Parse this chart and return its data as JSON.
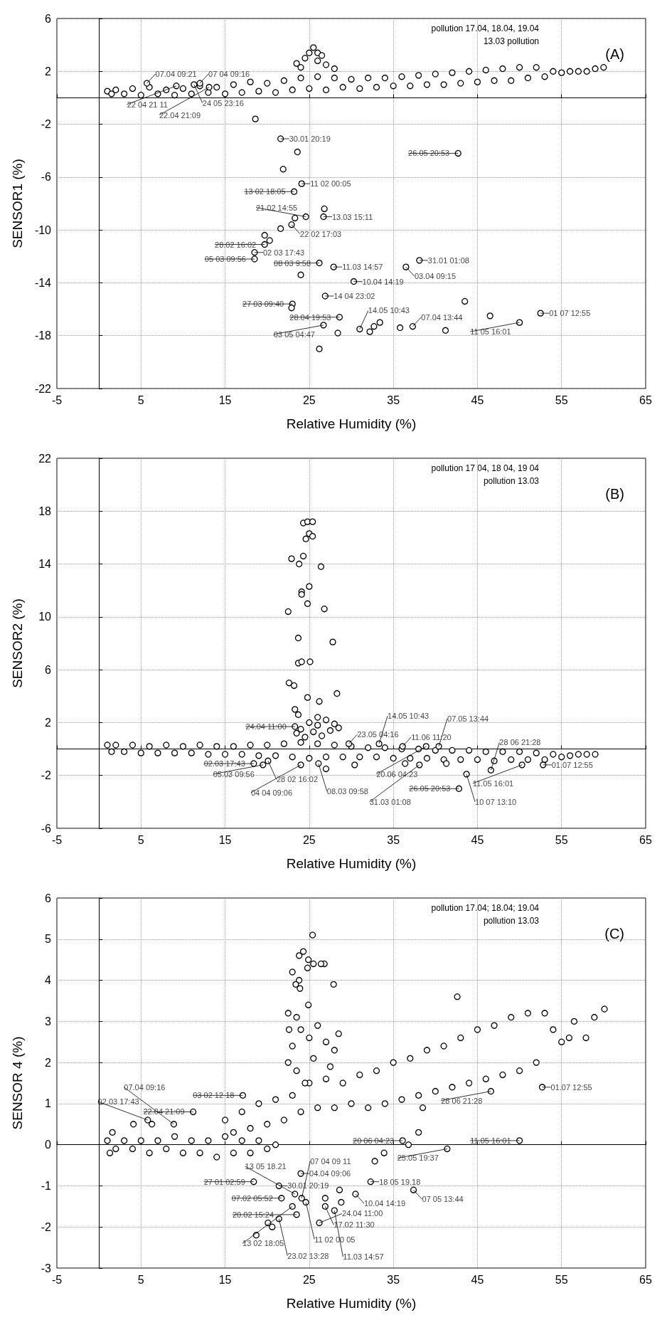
{
  "chart_data": [
    {
      "type": "scatter",
      "xlabel": "Relative Humidity (%)",
      "ylabel": "SENSOR1 (%)",
      "xlim": [
        -5,
        65
      ],
      "ylim": [
        -22,
        6
      ],
      "xticks": [
        -5,
        5,
        15,
        25,
        35,
        45,
        55,
        65
      ],
      "yticks": [
        -22,
        -18,
        -14,
        -10,
        -6,
        -2,
        2,
        6
      ],
      "grid": true,
      "marker": "circle",
      "series": [
        {
          "color": "#000000",
          "x": [
            1,
            1.5,
            2,
            3,
            4,
            5,
            6,
            7,
            8,
            9,
            10,
            11,
            12,
            13,
            14,
            15,
            16,
            17,
            18,
            19,
            20,
            21,
            22,
            23,
            24,
            25,
            26,
            27,
            28,
            29,
            30,
            31,
            32,
            33,
            34,
            35,
            36,
            37,
            38,
            39,
            40,
            41,
            42,
            43,
            44,
            45,
            46,
            47,
            48,
            49,
            50,
            51,
            52,
            53,
            54,
            55,
            56,
            57,
            58,
            59,
            60
          ],
          "values": [
            0.5,
            0.3,
            0.6,
            0.3,
            0.7,
            0.2,
            0.8,
            0.3,
            0.6,
            0.2,
            0.7,
            0.3,
            0.9,
            0.4,
            0.8,
            0.3,
            1.0,
            0.4,
            1.2,
            0.5,
            1.1,
            0.4,
            1.3,
            0.6,
            1.5,
            0.7,
            1.6,
            0.6,
            1.5,
            0.8,
            1.4,
            0.7,
            1.5,
            0.8,
            1.5,
            0.9,
            1.6,
            0.9,
            1.7,
            1.0,
            1.8,
            1.0,
            1.9,
            1.1,
            2.0,
            1.2,
            2.1,
            1.3,
            2.2,
            1.3,
            2.3,
            1.5,
            2.3,
            1.6,
            2.0,
            1.9,
            2.0,
            2.0,
            2.0,
            2.2,
            2.3
          ]
        },
        {
          "color": "#000000",
          "x": [
            25.5,
            25,
            26,
            26.5,
            24.5,
            23.5,
            27,
            28,
            24,
            26
          ],
          "values": [
            3.8,
            3.4,
            3.4,
            3.2,
            3.0,
            2.6,
            2.5,
            2.2,
            2.3,
            2.8
          ]
        },
        {
          "color": "#000000",
          "x": [
            5.7,
            9.2,
            11.3,
            12.0,
            13.1,
            18.6,
            21.6,
            23.6,
            24.1,
            21.9,
            23.2,
            24.6,
            26.7,
            26.8,
            42.7,
            22.9,
            21.6,
            23.3,
            19.7,
            20.3,
            19.7,
            18.5,
            18.5,
            26.2,
            27.9,
            38.1,
            36.5,
            24.0,
            30.3,
            26.9,
            43.5,
            23.0,
            22.9,
            46.5,
            52.5,
            50.0,
            28.6,
            26.7,
            28.4,
            26.2,
            31.0,
            32.2,
            32.7,
            33.4,
            35.8,
            37.3,
            41.2
          ],
          "values": [
            1.1,
            0.9,
            1.0,
            1.1,
            0.8,
            -1.6,
            -3.1,
            -4.1,
            -6.5,
            -5.4,
            -7.1,
            -9.0,
            -9.0,
            -8.4,
            -4.2,
            -9.6,
            -9.9,
            -9.1,
            -10.4,
            -10.8,
            -11.1,
            -11.7,
            -12.2,
            -12.5,
            -12.8,
            -12.3,
            -12.8,
            -13.4,
            -13.9,
            -15.0,
            -15.4,
            -15.6,
            -15.9,
            -16.5,
            -16.3,
            -17.0,
            -16.6,
            -17.2,
            -17.8,
            -19.0,
            -17.5,
            -17.7,
            -17.3,
            -17.0,
            -17.4,
            -17.3,
            -17.6
          ]
        }
      ],
      "annotations": [
        {
          "text": "22 04 21 11",
          "x": 9.2,
          "y": 0.9
        },
        {
          "text": "24 05 23:16",
          "x": 11.3,
          "y": 1.0
        },
        {
          "text": "07.04 09:21",
          "x": 5.7,
          "y": 1.1
        },
        {
          "text": "07 04 09:16",
          "x": 12.0,
          "y": 1.1
        },
        {
          "text": "22.04 21:09",
          "x": 13.1,
          "y": 0.8
        },
        "pollution 17.04, 18.04, 19.04",
        "13.03 pollution",
        {
          "text": "30.01 20:19",
          "x": 21.6,
          "y": -3.1
        },
        {
          "text": "11 02 00:05",
          "x": 24.1,
          "y": -6.5
        },
        {
          "text": "13 02 18:05",
          "x": 23.2,
          "y": -7.1
        },
        {
          "text": "21.02 14:55",
          "x": 24.6,
          "y": -9.0
        },
        {
          "text": "13.03 15:11",
          "x": 26.7,
          "y": -9.0
        },
        {
          "text": "11.03 14:57",
          "x": 27.9,
          "y": -12.8
        },
        {
          "text": "22 02 17:03",
          "x": 22.9,
          "y": -9.6
        },
        {
          "text": "28.02 16:02",
          "x": 19.7,
          "y": -11.1
        },
        {
          "text": "31.01 01:08",
          "x": 38.1,
          "y": -12.3
        },
        {
          "text": "02 03 17:43",
          "x": 18.5,
          "y": -11.7
        },
        {
          "text": "05 03 09:56",
          "x": 18.5,
          "y": -12.2
        },
        {
          "text": "08 03 9:58",
          "x": 26.2,
          "y": -12.5
        },
        {
          "text": "03.04 09:15",
          "x": 36.5,
          "y": -12.8
        },
        {
          "text": "10.04 14:19",
          "x": 30.3,
          "y": -13.9
        },
        {
          "text": "14 04 23:02",
          "x": 26.9,
          "y": -15.0
        },
        {
          "text": "27 03 09:40",
          "x": 23.0,
          "y": -15.6
        },
        {
          "text": "01 07 12:55",
          "x": 52.5,
          "y": -16.3
        },
        {
          "text": "28.04 19:53",
          "x": 28.6,
          "y": -16.6
        },
        {
          "text": "03 05 04:47",
          "x": 26.7,
          "y": -17.2
        },
        {
          "text": "14.05 10:43",
          "x": 31.0,
          "y": -17.5
        },
        {
          "text": "07.04 13:44",
          "x": 37.3,
          "y": -17.3
        },
        {
          "text": "11 05 16:01",
          "x": 50.0,
          "y": -17.0
        },
        {
          "text": "26.05 20:53",
          "x": 42.7,
          "y": -4.2
        },
        "(A)"
      ]
    },
    {
      "type": "scatter",
      "xlabel": "Relative Humidity (%)",
      "ylabel": "SENSOR2 (%)",
      "xlim": [
        -5,
        65
      ],
      "ylim": [
        -6,
        22
      ],
      "xticks": [
        -5,
        5,
        15,
        25,
        35,
        45,
        55,
        65
      ],
      "yticks": [
        -6,
        -2,
        2,
        6,
        10,
        14,
        18,
        22
      ],
      "grid": true,
      "marker": "circle",
      "series": [
        {
          "color": "#000000",
          "x": [
            1,
            1.5,
            2,
            3,
            4,
            5,
            6,
            7,
            8,
            9,
            10,
            11,
            12,
            13,
            14,
            15,
            16,
            17,
            18,
            19,
            20,
            21,
            22,
            23,
            24,
            25,
            26,
            27,
            28,
            29,
            30,
            31,
            32,
            33,
            34,
            35,
            36,
            37,
            38,
            39,
            40,
            41,
            42,
            43,
            44,
            45,
            46,
            47,
            48,
            49,
            50,
            51,
            52,
            53,
            54,
            55,
            56,
            57,
            58,
            59
          ],
          "values": [
            0.3,
            -0.2,
            0.3,
            -0.2,
            0.3,
            -0.3,
            0.2,
            -0.3,
            0.3,
            -0.3,
            0.2,
            -0.3,
            0.3,
            -0.4,
            0.2,
            -0.4,
            0.2,
            -0.4,
            0.3,
            -0.5,
            0.3,
            -0.5,
            0.4,
            -0.6,
            0.5,
            -0.7,
            0.4,
            -0.6,
            0.3,
            -0.6,
            0.2,
            -0.6,
            0.1,
            -0.6,
            0.1,
            -0.7,
            0.0,
            -0.7,
            0.0,
            -0.7,
            -0.1,
            -0.8,
            -0.1,
            -0.8,
            -0.1,
            -0.8,
            -0.2,
            -0.9,
            -0.2,
            -0.8,
            -0.2,
            -0.8,
            -0.3,
            -0.8,
            -0.4,
            -0.6,
            -0.5,
            -0.4,
            -0.4,
            -0.4
          ]
        },
        {
          "color": "#000000",
          "x": [
            24.3,
            24.8,
            25.4,
            25.0,
            25.4,
            24.6,
            24.3,
            22.9,
            23.8,
            26.4,
            25.0,
            24.1,
            24.1,
            24.8,
            26.8,
            22.5,
            23.7,
            27.8,
            23.7,
            24.1,
            25.1,
            22.6,
            23.2,
            28.3,
            24.8,
            26.2,
            23.3,
            23.7
          ],
          "values": [
            17.1,
            17.2,
            17.2,
            16.3,
            16.1,
            15.9,
            14.6,
            14.4,
            14.0,
            13.8,
            12.3,
            11.9,
            11.7,
            11.0,
            10.6,
            10.4,
            8.4,
            8.1,
            6.5,
            6.6,
            6.6,
            5.0,
            4.8,
            4.2,
            3.9,
            3.6,
            3.0,
            2.6
          ]
        },
        {
          "color": "#000000",
          "x": [
            24,
            25,
            26,
            27,
            28,
            24.5,
            26.5,
            27.5,
            25.5,
            28.5,
            23.5,
            26,
            23.3
          ],
          "values": [
            1.5,
            2.0,
            1.8,
            2.2,
            1.9,
            0.9,
            1.0,
            1.4,
            1.3,
            1.6,
            1.2,
            2.4,
            1.7
          ]
        },
        {
          "color": "#000000",
          "x": [
            18.4,
            19.5,
            20.1,
            24.0,
            26.1,
            27.0,
            38.1,
            43.7,
            42.8,
            46.6,
            50.3,
            52.8,
            41.3,
            30.4,
            36.4,
            29.7,
            33.3,
            36.1,
            38.9,
            40.4
          ],
          "values": [
            -1.1,
            -1.2,
            -0.9,
            -1.2,
            -1.1,
            -1.5,
            -1.2,
            -1.9,
            -3.0,
            -1.6,
            -1.2,
            -1.2,
            -1.1,
            -1.2,
            -1.1,
            0.4,
            0.4,
            0.2,
            0.2,
            0.2
          ]
        }
      ],
      "annotations": [
        "pollution 17 04, 18 04, 19 04",
        "pollution 13.03",
        {
          "text": "23.05 04:16",
          "x": 29.7,
          "y": 0.4
        },
        {
          "text": "14.05 10:43",
          "x": 33.3,
          "y": 0.4
        },
        {
          "text": "11.06 11:20",
          "x": 36.1,
          "y": 0.2
        },
        {
          "text": "20.06 04:23",
          "x": 38.9,
          "y": 0.2
        },
        {
          "text": "07.05 13:44",
          "x": 40.4,
          "y": 0.2
        },
        {
          "text": "24.04 11:00",
          "x": 23.3,
          "y": 1.7
        },
        {
          "text": "02.03 17:43",
          "x": 18.4,
          "y": -1.1
        },
        {
          "text": "05.03 09:56",
          "x": 19.5,
          "y": -1.2
        },
        {
          "text": "28 02 16:02",
          "x": 20.1,
          "y": -0.9
        },
        {
          "text": "04 04 09:06",
          "x": 24.0,
          "y": -1.2
        },
        {
          "text": "08.03 09:58",
          "x": 26.1,
          "y": -1.1
        },
        {
          "text": "31.03 01:08",
          "x": 38.1,
          "y": -1.2
        },
        {
          "text": "10 07 13:10",
          "x": 43.7,
          "y": -1.9
        },
        {
          "text": "26.05 20:53",
          "x": 42.8,
          "y": -3.0
        },
        {
          "text": "01.07 12:55",
          "x": 52.8,
          "y": -1.2
        },
        {
          "text": "11.05 16:01",
          "x": 50.3,
          "y": -1.2
        },
        {
          "text": "28 06 21:28",
          "x": 46.6,
          "y": -1.6
        },
        "(B)"
      ]
    },
    {
      "type": "scatter",
      "xlabel": "Relative Humidity (%)",
      "ylabel": "SENSOR 4 (%)",
      "xlim": [
        -5,
        65
      ],
      "ylim": [
        -3,
        6
      ],
      "xticks": [
        -5,
        5,
        15,
        25,
        35,
        45,
        55,
        65
      ],
      "yticks": [
        -3,
        -2,
        -1,
        0,
        1,
        2,
        3,
        4,
        5,
        6
      ],
      "grid": true,
      "marker": "circle",
      "series": [
        {
          "color": "#000000",
          "x": [
            1,
            1.3,
            1.6,
            2,
            3,
            4,
            5,
            6,
            7,
            8,
            9,
            10,
            11,
            12,
            13,
            14,
            15,
            16,
            17,
            18,
            19,
            20,
            21
          ],
          "values": [
            0.1,
            -0.2,
            0.3,
            -0.1,
            0.1,
            -0.1,
            0.1,
            -0.2,
            0.1,
            -0.1,
            0.2,
            -0.2,
            0.1,
            -0.2,
            0.1,
            -0.3,
            0.2,
            -0.2,
            0.1,
            -0.2,
            0.1,
            -0.1,
            0.0
          ]
        },
        {
          "color": "#000000",
          "x": [
            15,
            16,
            17,
            18,
            19,
            20,
            21,
            22,
            23,
            24,
            25,
            26,
            27,
            28,
            29,
            30,
            31,
            32,
            33,
            34,
            35,
            36,
            37,
            38,
            39,
            40,
            41,
            42,
            43,
            44,
            45,
            46,
            47,
            48,
            49,
            50,
            51,
            52,
            53,
            54,
            55
          ],
          "values": [
            0.6,
            0.3,
            0.8,
            0.4,
            1.0,
            0.5,
            1.1,
            0.6,
            1.2,
            0.8,
            1.5,
            0.9,
            1.6,
            0.9,
            1.5,
            1.0,
            1.7,
            0.9,
            1.8,
            1.0,
            2.0,
            1.1,
            2.1,
            1.2,
            2.3,
            1.3,
            2.4,
            1.4,
            2.6,
            1.5,
            2.8,
            1.6,
            2.9,
            1.7,
            3.1,
            1.8,
            3.2,
            2.0,
            3.2,
            2.8,
            2.5
          ]
        },
        {
          "color": "#000000",
          "x": [
            25.4,
            24.3,
            23.8,
            24.9,
            25.5,
            26.8,
            26.4,
            24.8,
            23.0,
            23.8,
            23.4,
            23.9,
            27.9,
            24.9,
            22.5,
            23.5,
            22.6
          ],
          "values": [
            5.1,
            4.7,
            4.6,
            4.5,
            4.4,
            4.4,
            4.4,
            4.3,
            4.2,
            4.0,
            3.9,
            3.8,
            3.9,
            3.4,
            3.2,
            3.1,
            2.8
          ]
        },
        {
          "color": "#000000",
          "x": [
            23,
            24,
            25,
            26,
            27,
            28,
            23.5,
            25.5,
            27.5,
            24.5,
            22.5,
            28.5
          ],
          "values": [
            2.4,
            2.8,
            2.6,
            2.9,
            2.5,
            2.3,
            1.8,
            2.1,
            1.9,
            1.5,
            2.0,
            2.7
          ]
        },
        {
          "color": "#000000",
          "x": [
            42.6,
            56.5,
            58.9,
            60.1,
            57.9,
            55.9,
            8.9,
            11.2,
            17.1,
            23.3,
            24.1,
            24.6,
            24.0,
            4.1,
            5.8,
            6.3,
            36.1,
            36.8,
            38.0,
            46.6,
            52.7,
            41.4,
            50.0,
            32.3,
            37.4,
            30.5,
            28.0,
            26.9,
            26.2,
            23.5,
            21.4,
            23.0,
            21.7,
            21.4,
            18.4,
            32.8,
            33.9,
            18.7,
            20.1,
            20.6,
            28.6,
            28.8,
            26.9,
            38.5
          ],
          "values": [
            3.6,
            3.0,
            3.1,
            3.3,
            2.6,
            2.6,
            0.5,
            0.8,
            1.2,
            -1.2,
            -1.3,
            -1.4,
            -0.7,
            0.5,
            0.6,
            0.5,
            0.1,
            0.0,
            0.3,
            1.3,
            1.4,
            -0.1,
            0.1,
            -0.9,
            -1.1,
            -1.2,
            -1.6,
            -1.5,
            -1.9,
            -1.7,
            -1.8,
            -1.5,
            -1.3,
            -1.0,
            -0.9,
            -0.4,
            -0.2,
            -2.2,
            -1.9,
            -2.0,
            -1.1,
            -1.4,
            -1.3,
            0.9
          ]
        }
      ],
      "annotations": [
        {
          "text": "07 04 09 11",
          "x": 24.1,
          "y": -1.3
        },
        {
          "text": "11 02 00 05",
          "x": 24.6,
          "y": -1.4
        },
        {
          "text": "04.04 09:06",
          "x": 24.0,
          "y": -0.7
        },
        "pollution 17.04; 18.04; 19.04",
        "pollution 13.03",
        {
          "text": "13 05 18.21",
          "x": 23.3,
          "y": -1.2
        },
        {
          "text": "03 02 12 18",
          "x": 17.1,
          "y": 1.2
        },
        {
          "text": "22.04 21:09",
          "x": 11.2,
          "y": 0.8
        },
        {
          "text": "07.04 09:16",
          "x": 8.9,
          "y": 0.5
        },
        {
          "text": "02.03 17:43",
          "x": 5.8,
          "y": 0.6
        },
        {
          "text": "20 06 04:23",
          "x": 36.1,
          "y": 0.1
        },
        {
          "text": "28 06 21:28",
          "x": 46.6,
          "y": 1.3
        },
        {
          "text": "01.07 12:55",
          "x": 52.7,
          "y": 1.4
        },
        {
          "text": "25.05 19:37",
          "x": 41.4,
          "y": -0.1
        },
        {
          "text": "11.05 16:01",
          "x": 50.0,
          "y": 0.1
        },
        {
          "text": "18 05 19.18",
          "x": 32.3,
          "y": -0.9
        },
        {
          "text": "07 05 13:44",
          "x": 37.4,
          "y": -1.1
        },
        {
          "text": "10.04 14:19",
          "x": 30.5,
          "y": -1.2
        },
        {
          "text": "11.03 14:57",
          "x": 28.0,
          "y": -1.6
        },
        {
          "text": "17.02 11:30",
          "x": 26.9,
          "y": -1.5
        },
        {
          "text": "24.04 11:00",
          "x": 26.2,
          "y": -1.9
        },
        {
          "text": "20.02 15:24",
          "x": 23.5,
          "y": -1.7
        },
        {
          "text": "23.02 13:28",
          "x": 21.4,
          "y": -1.8
        },
        {
          "text": "13 02 18:05",
          "x": 23.0,
          "y": -1.5
        },
        {
          "text": "07.02 05:52",
          "x": 21.7,
          "y": -1.3
        },
        {
          "text": "30.01 20:19",
          "x": 21.4,
          "y": -1.0
        },
        {
          "text": "27 01 02:59",
          "x": 18.4,
          "y": -0.9
        },
        "(C)"
      ]
    }
  ]
}
